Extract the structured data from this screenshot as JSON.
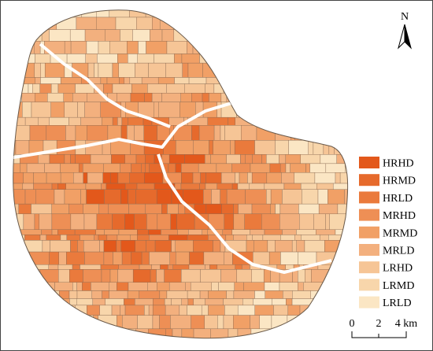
{
  "north_label": "N",
  "legend": [
    {
      "label": "HRHD",
      "color": "#e3581b"
    },
    {
      "label": "HRMD",
      "color": "#e66a2c"
    },
    {
      "label": "HRLD",
      "color": "#ea7a3c"
    },
    {
      "label": "MRHD",
      "color": "#ee8f55"
    },
    {
      "label": "MRMD",
      "color": "#f1a066"
    },
    {
      "label": "MRLD",
      "color": "#f3b07e"
    },
    {
      "label": "LRHD",
      "color": "#f6c596"
    },
    {
      "label": "LRMD",
      "color": "#f8d6ab"
    },
    {
      "label": "LRLD",
      "color": "#fbe6c4"
    }
  ],
  "scale_bar": [
    "0",
    "2",
    "4 km"
  ]
}
